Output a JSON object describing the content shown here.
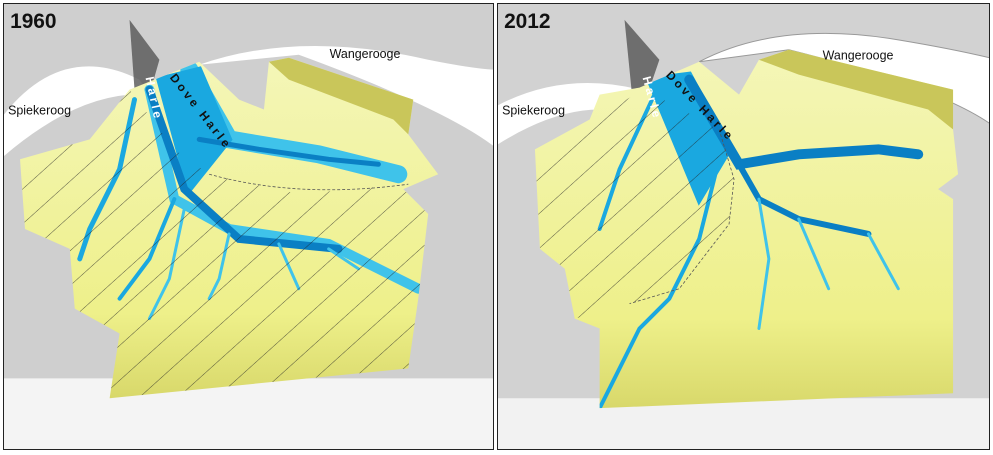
{
  "panels": [
    {
      "year": "1960",
      "labels": {
        "island_east": "Wangerooge",
        "island_west": "Spiekeroog",
        "channel_main": "Dove Harle",
        "channel_side": "Harle"
      }
    },
    {
      "year": "2012",
      "labels": {
        "island_east": "Wangerooge",
        "island_west": "Spiekeroog",
        "channel_main": "Dove Harle",
        "channel_side": "Harle"
      }
    }
  ],
  "colors": {
    "tidal_flat": "#eef08a",
    "tidal_flat_high": "#c9c65a",
    "channel_deep": "#0a7fc4",
    "channel_shallow": "#3fc3ea",
    "island": "#ffffff",
    "background_relief": "#c8c8c8",
    "hatch": "#222222"
  }
}
